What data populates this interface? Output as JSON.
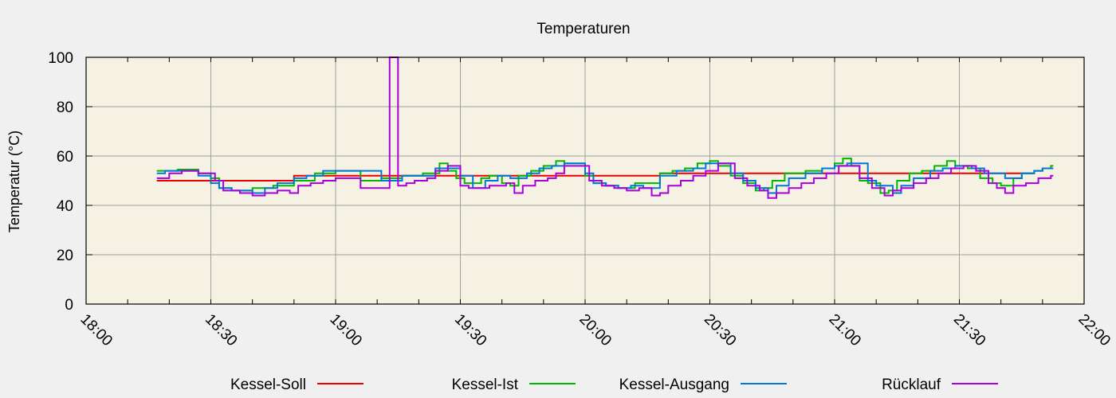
{
  "chart_data": {
    "type": "line",
    "title": "Temperaturen",
    "xlabel": "",
    "ylabel": "Temperatur (°C)",
    "xlim": [
      "18:00",
      "22:00"
    ],
    "ylim": [
      0,
      100
    ],
    "x_ticks": [
      "18:00",
      "18:30",
      "19:00",
      "19:30",
      "20:00",
      "20:30",
      "21:00",
      "21:30",
      "22:00"
    ],
    "y_ticks": [
      0,
      20,
      40,
      60,
      80,
      100
    ],
    "grid": true,
    "legend_position": "bottom",
    "plot_background": "#f5f1e3",
    "page_background": "#f0f0f0",
    "series": [
      {
        "name": "Kessel-Soll",
        "color": "#ee0000",
        "step": true,
        "points": [
          [
            "18:17",
            50
          ],
          [
            "18:50",
            52
          ],
          [
            "19:35",
            52
          ],
          [
            "20:18",
            53
          ],
          [
            "21:20",
            53
          ],
          [
            "21:47",
            53
          ]
        ]
      },
      {
        "name": "Kessel-Ist",
        "color": "#00b800",
        "step": true,
        "points": [
          [
            "18:17",
            54
          ],
          [
            "18:22",
            54.5
          ],
          [
            "18:27",
            53
          ],
          [
            "18:30",
            51
          ],
          [
            "18:32",
            47
          ],
          [
            "18:35",
            46
          ],
          [
            "18:40",
            47
          ],
          [
            "18:45",
            48
          ],
          [
            "18:50",
            50
          ],
          [
            "18:55",
            53
          ],
          [
            "19:00",
            54
          ],
          [
            "19:06",
            50
          ],
          [
            "19:11",
            51
          ],
          [
            "19:16",
            52
          ],
          [
            "19:21",
            53
          ],
          [
            "19:25",
            57
          ],
          [
            "19:27",
            54
          ],
          [
            "19:29",
            51
          ],
          [
            "19:31",
            49
          ],
          [
            "19:33",
            49
          ],
          [
            "19:35",
            51
          ],
          [
            "19:37",
            52
          ],
          [
            "19:40",
            49
          ],
          [
            "19:42",
            48
          ],
          [
            "19:44",
            52
          ],
          [
            "19:47",
            54
          ],
          [
            "19:50",
            56
          ],
          [
            "19:53",
            58
          ],
          [
            "19:55",
            57
          ],
          [
            "20:00",
            52
          ],
          [
            "20:02",
            49
          ],
          [
            "20:05",
            48
          ],
          [
            "20:08",
            47
          ],
          [
            "20:10",
            47
          ],
          [
            "20:12",
            49
          ],
          [
            "20:15",
            49
          ],
          [
            "20:18",
            53
          ],
          [
            "20:21",
            54
          ],
          [
            "20:24",
            55
          ],
          [
            "20:27",
            57
          ],
          [
            "20:30",
            58
          ],
          [
            "20:32",
            56
          ],
          [
            "20:35",
            52
          ],
          [
            "20:38",
            49
          ],
          [
            "20:41",
            46
          ],
          [
            "20:43",
            47
          ],
          [
            "20:45",
            50
          ],
          [
            "20:48",
            53
          ],
          [
            "20:50",
            53
          ],
          [
            "20:53",
            54
          ],
          [
            "20:57",
            55
          ],
          [
            "21:00",
            57
          ],
          [
            "21:02",
            59
          ],
          [
            "21:04",
            56
          ],
          [
            "21:06",
            50
          ],
          [
            "21:08",
            49
          ],
          [
            "21:11",
            45
          ],
          [
            "21:13",
            46
          ],
          [
            "21:15",
            50
          ],
          [
            "21:18",
            53
          ],
          [
            "21:21",
            54
          ],
          [
            "21:24",
            56
          ],
          [
            "21:27",
            58
          ],
          [
            "21:29",
            56
          ],
          [
            "21:32",
            55
          ],
          [
            "21:35",
            51
          ],
          [
            "21:38",
            49
          ],
          [
            "21:40",
            48
          ],
          [
            "21:43",
            51
          ],
          [
            "21:45",
            53
          ],
          [
            "21:48",
            54
          ],
          [
            "21:50",
            55
          ],
          [
            "21:52",
            56
          ]
        ]
      },
      {
        "name": "Kessel-Ausgang",
        "color": "#0078d8",
        "step": true,
        "points": [
          [
            "18:17",
            53
          ],
          [
            "18:19",
            54
          ],
          [
            "18:24",
            54
          ],
          [
            "18:27",
            52
          ],
          [
            "18:30",
            49
          ],
          [
            "18:32",
            47
          ],
          [
            "18:35",
            46
          ],
          [
            "18:40",
            45
          ],
          [
            "18:43",
            47
          ],
          [
            "18:46",
            49
          ],
          [
            "18:50",
            51
          ],
          [
            "18:53",
            52
          ],
          [
            "18:57",
            54
          ],
          [
            "19:06",
            54
          ],
          [
            "19:11",
            50
          ],
          [
            "19:16",
            52
          ],
          [
            "19:21",
            52
          ],
          [
            "19:24",
            55
          ],
          [
            "19:27",
            55
          ],
          [
            "19:30",
            52
          ],
          [
            "19:33",
            47
          ],
          [
            "19:36",
            50
          ],
          [
            "19:39",
            52
          ],
          [
            "19:42",
            51
          ],
          [
            "19:46",
            53
          ],
          [
            "19:49",
            55
          ],
          [
            "19:52",
            56
          ],
          [
            "19:55",
            57
          ],
          [
            "20:00",
            53
          ],
          [
            "20:02",
            49
          ],
          [
            "20:05",
            48
          ],
          [
            "20:08",
            47
          ],
          [
            "20:11",
            48
          ],
          [
            "20:14",
            47
          ],
          [
            "20:18",
            52
          ],
          [
            "20:22",
            54
          ],
          [
            "20:26",
            55
          ],
          [
            "20:29",
            57
          ],
          [
            "20:31",
            57
          ],
          [
            "20:35",
            53
          ],
          [
            "20:38",
            50
          ],
          [
            "20:41",
            47
          ],
          [
            "20:44",
            45
          ],
          [
            "20:46",
            48
          ],
          [
            "20:49",
            51
          ],
          [
            "20:53",
            53
          ],
          [
            "20:57",
            55
          ],
          [
            "21:00",
            56
          ],
          [
            "21:03",
            57
          ],
          [
            "21:08",
            50
          ],
          [
            "21:10",
            48
          ],
          [
            "21:14",
            45
          ],
          [
            "21:16",
            48
          ],
          [
            "21:19",
            51
          ],
          [
            "21:23",
            54
          ],
          [
            "21:26",
            55
          ],
          [
            "21:29",
            56
          ],
          [
            "21:33",
            55
          ],
          [
            "21:36",
            53
          ],
          [
            "21:41",
            51
          ],
          [
            "21:45",
            53
          ],
          [
            "21:48",
            54
          ],
          [
            "21:50",
            55
          ],
          [
            "21:52",
            55
          ]
        ]
      },
      {
        "name": "Rücklauf",
        "color": "#aa00dd",
        "step": true,
        "points": [
          [
            "18:17",
            51
          ],
          [
            "18:20",
            53
          ],
          [
            "18:23",
            54
          ],
          [
            "18:27",
            53
          ],
          [
            "18:31",
            50
          ],
          [
            "18:33",
            46
          ],
          [
            "18:37",
            45
          ],
          [
            "18:40",
            44
          ],
          [
            "18:43",
            45
          ],
          [
            "18:46",
            46
          ],
          [
            "18:49",
            45
          ],
          [
            "18:51",
            48
          ],
          [
            "18:54",
            49
          ],
          [
            "18:57",
            50
          ],
          [
            "19:00",
            51
          ],
          [
            "19:06",
            47
          ],
          [
            "19:13",
            47
          ],
          [
            "19:13",
            100
          ],
          [
            "19:15",
            100
          ],
          [
            "19:15",
            48
          ],
          [
            "19:17",
            49
          ],
          [
            "19:19",
            50
          ],
          [
            "19:22",
            51
          ],
          [
            "19:24",
            54
          ],
          [
            "19:27",
            56
          ],
          [
            "19:30",
            48
          ],
          [
            "19:32",
            47
          ],
          [
            "19:37",
            48
          ],
          [
            "19:41",
            49
          ],
          [
            "19:43",
            45
          ],
          [
            "19:45",
            48
          ],
          [
            "19:48",
            50
          ],
          [
            "19:51",
            51
          ],
          [
            "19:53",
            53
          ],
          [
            "19:55",
            56
          ],
          [
            "20:01",
            50
          ],
          [
            "20:04",
            48
          ],
          [
            "20:07",
            47
          ],
          [
            "20:10",
            46
          ],
          [
            "20:13",
            47
          ],
          [
            "20:16",
            44
          ],
          [
            "20:18",
            45
          ],
          [
            "20:20",
            48
          ],
          [
            "20:23",
            50
          ],
          [
            "20:26",
            52
          ],
          [
            "20:29",
            54
          ],
          [
            "20:32",
            57
          ],
          [
            "20:36",
            51
          ],
          [
            "20:39",
            48
          ],
          [
            "20:42",
            46
          ],
          [
            "20:44",
            43
          ],
          [
            "20:46",
            45
          ],
          [
            "20:49",
            47
          ],
          [
            "20:52",
            49
          ],
          [
            "20:55",
            51
          ],
          [
            "20:58",
            53
          ],
          [
            "21:01",
            56
          ],
          [
            "21:06",
            51
          ],
          [
            "21:09",
            47
          ],
          [
            "21:12",
            44
          ],
          [
            "21:14",
            46
          ],
          [
            "21:16",
            47
          ],
          [
            "21:19",
            49
          ],
          [
            "21:22",
            51
          ],
          [
            "21:25",
            53
          ],
          [
            "21:28",
            55
          ],
          [
            "21:31",
            56
          ],
          [
            "21:34",
            54
          ],
          [
            "21:37",
            49
          ],
          [
            "21:39",
            47
          ],
          [
            "21:41",
            45
          ],
          [
            "21:43",
            48
          ],
          [
            "21:46",
            49
          ],
          [
            "21:49",
            51
          ],
          [
            "21:52",
            52
          ]
        ]
      }
    ]
  }
}
